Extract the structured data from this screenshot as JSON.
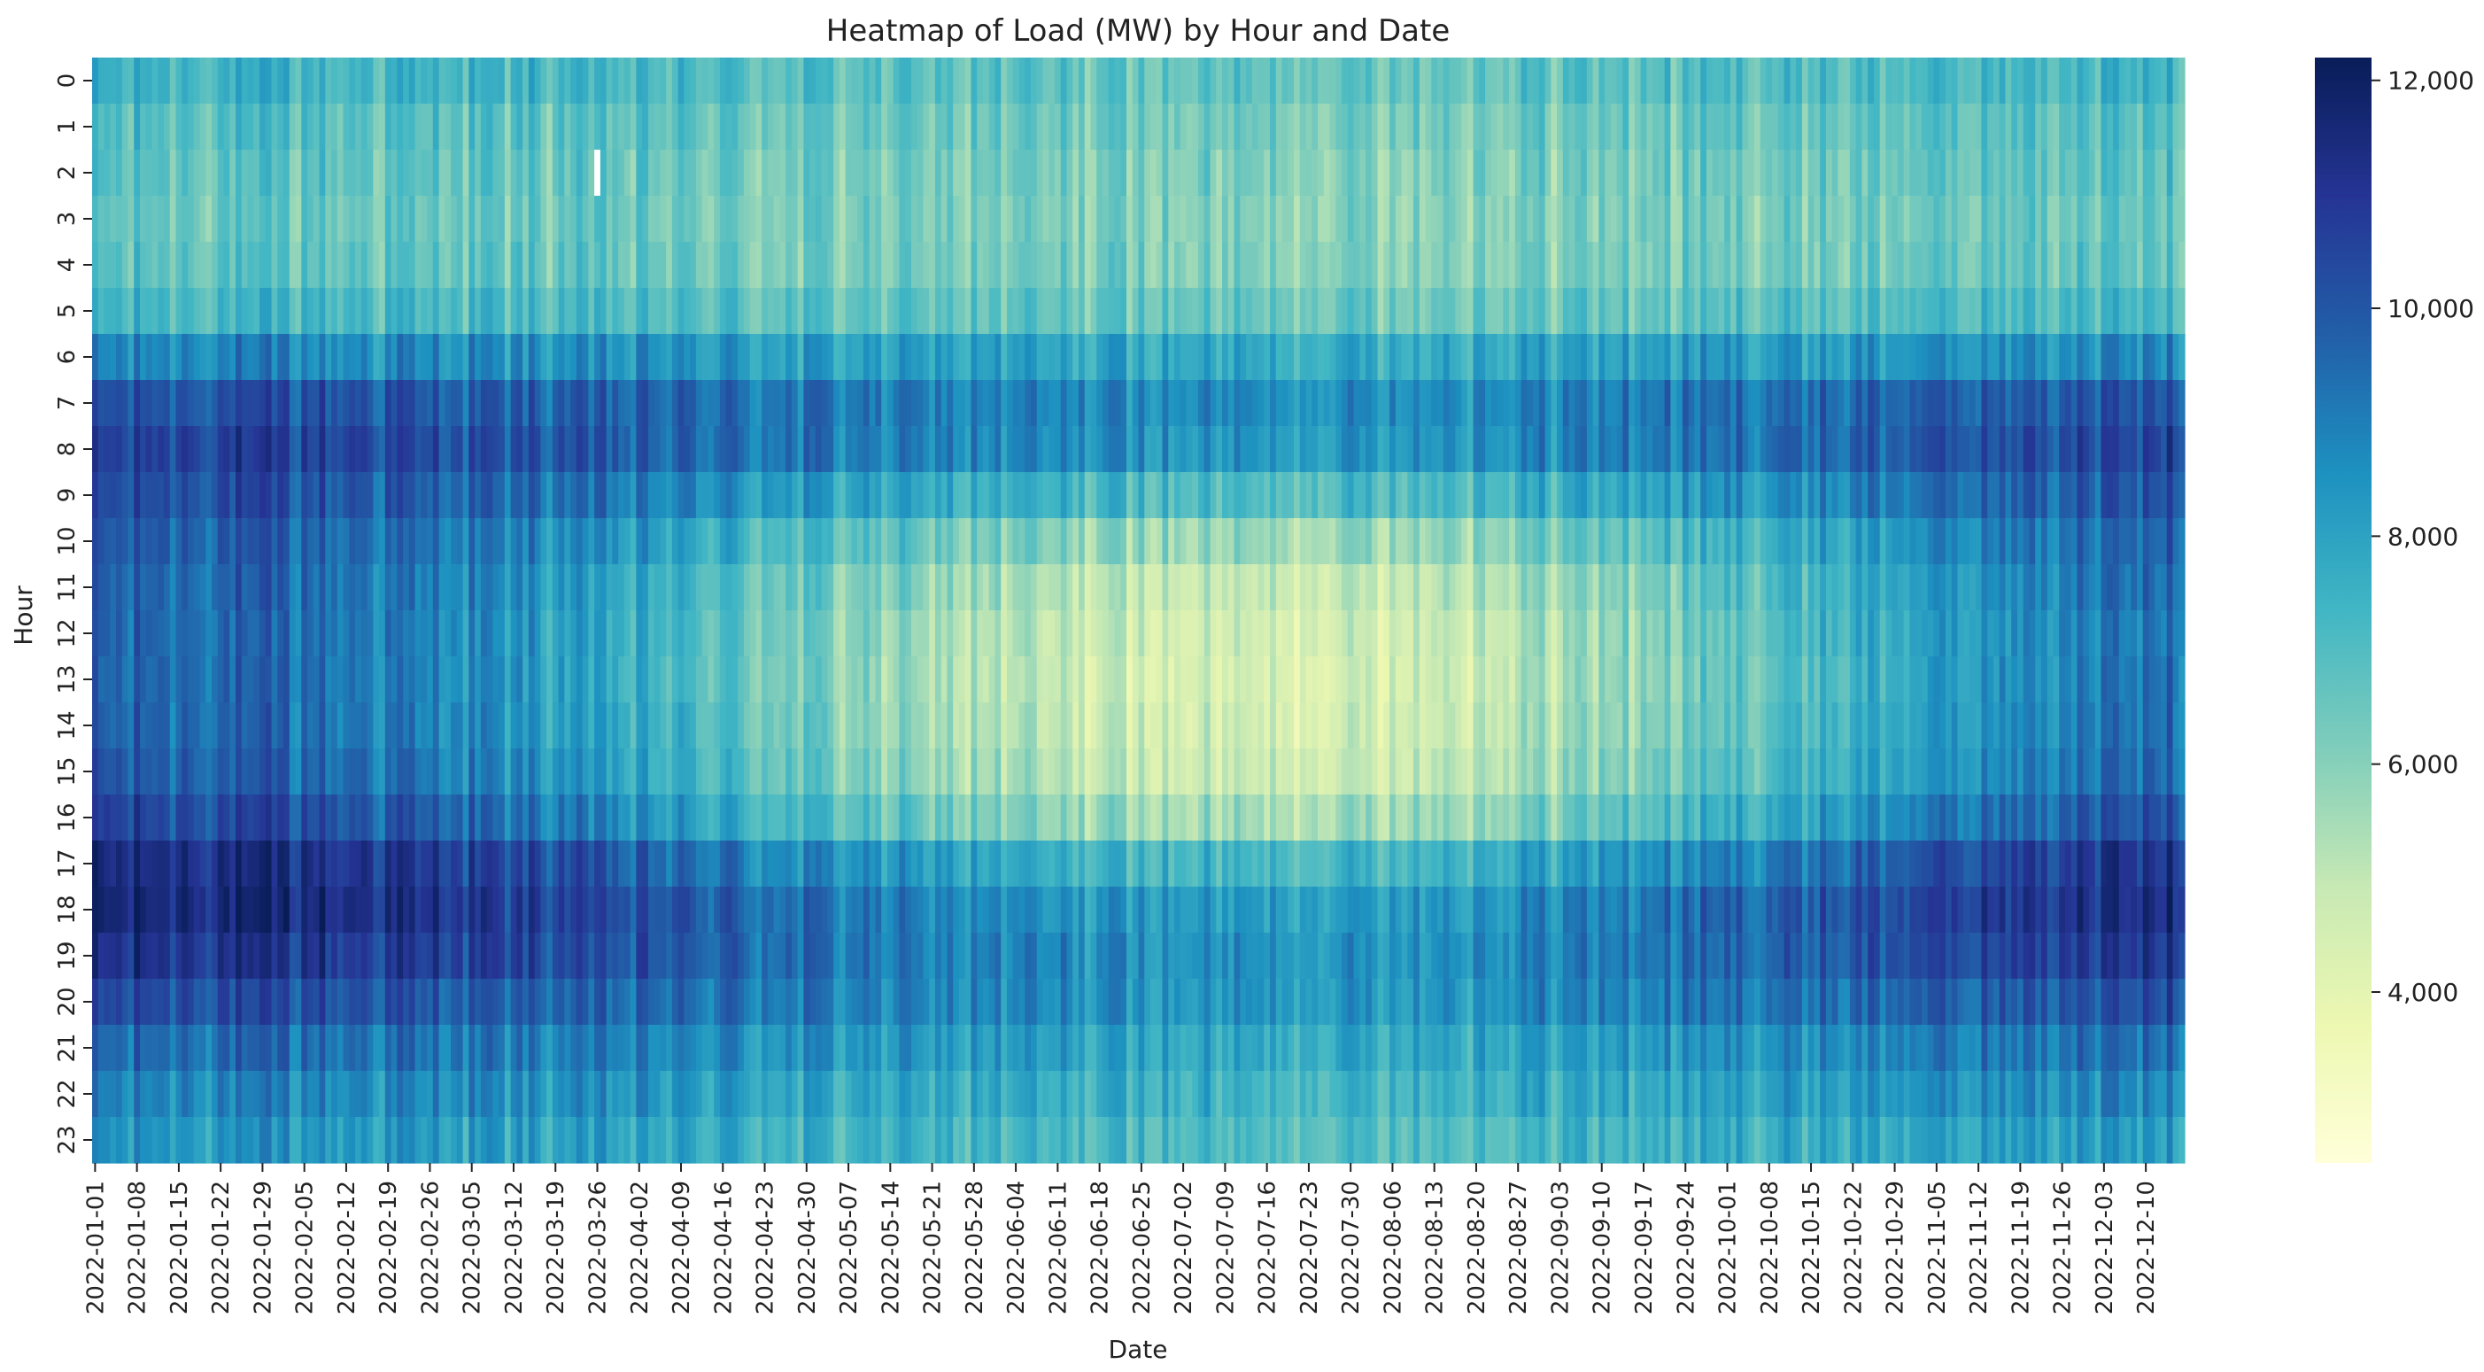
{
  "chart_data": {
    "type": "heatmap",
    "title": "Heatmap of Load (MW) by Hour and Date",
    "xlabel": "Date",
    "ylabel": "Hour",
    "colormap": "YlGnBu",
    "colormap_stops": [
      "#ffffd9",
      "#edf8b1",
      "#c7e9b4",
      "#7fcdbb",
      "#41b6c4",
      "#1d91c0",
      "#225ea8",
      "#253494",
      "#081d58"
    ],
    "value_range": [
      2500,
      12200
    ],
    "rows": [
      "0",
      "1",
      "2",
      "3",
      "4",
      "5",
      "6",
      "7",
      "8",
      "9",
      "10",
      "11",
      "12",
      "13",
      "14",
      "15",
      "16",
      "17",
      "18",
      "19",
      "20",
      "21",
      "22",
      "23"
    ],
    "start_date": "2022-01-01",
    "days": 350,
    "x_tick_labels": [
      "2022-01-01",
      "2022-01-08",
      "2022-01-15",
      "2022-01-22",
      "2022-01-29",
      "2022-02-05",
      "2022-02-12",
      "2022-02-19",
      "2022-02-26",
      "2022-03-05",
      "2022-03-12",
      "2022-03-19",
      "2022-03-26",
      "2022-04-02",
      "2022-04-09",
      "2022-04-16",
      "2022-04-23",
      "2022-04-30",
      "2022-05-07",
      "2022-05-14",
      "2022-05-21",
      "2022-05-28",
      "2022-06-04",
      "2022-06-11",
      "2022-06-18",
      "2022-06-25",
      "2022-07-02",
      "2022-07-09",
      "2022-07-16",
      "2022-07-23",
      "2022-07-30",
      "2022-08-06",
      "2022-08-13",
      "2022-08-20",
      "2022-08-27",
      "2022-09-03",
      "2022-09-10",
      "2022-09-17",
      "2022-09-24",
      "2022-10-01",
      "2022-10-08",
      "2022-10-15",
      "2022-10-22",
      "2022-10-29",
      "2022-11-05",
      "2022-11-12",
      "2022-11-19",
      "2022-11-26",
      "2022-12-03",
      "2022-12-10"
    ],
    "x_tick_interval_days": 7,
    "hourly_profile_mw": {
      "winter": [
        7600,
        7100,
        6900,
        6800,
        6900,
        7400,
        8900,
        10300,
        10800,
        10400,
        10000,
        9800,
        9700,
        9700,
        9800,
        10000,
        10600,
        11500,
        11700,
        11200,
        10400,
        9600,
        9000,
        8500
      ],
      "summer": [
        6800,
        6500,
        6300,
        6200,
        6300,
        6700,
        7900,
        8800,
        8500,
        7200,
        5800,
        5000,
        4700,
        4600,
        4700,
        4900,
        5600,
        7400,
        8300,
        8600,
        8500,
        8000,
        7600,
        7200
      ]
    },
    "colorbar_ticks": [
      4000,
      6000,
      8000,
      10000,
      12000
    ],
    "colorbar_tick_labels": [
      "4,000",
      "6,000",
      "8,000",
      "10,000",
      "12,000"
    ],
    "missing_cells": [
      {
        "date": "2022-03-26",
        "hour": 2
      }
    ]
  }
}
